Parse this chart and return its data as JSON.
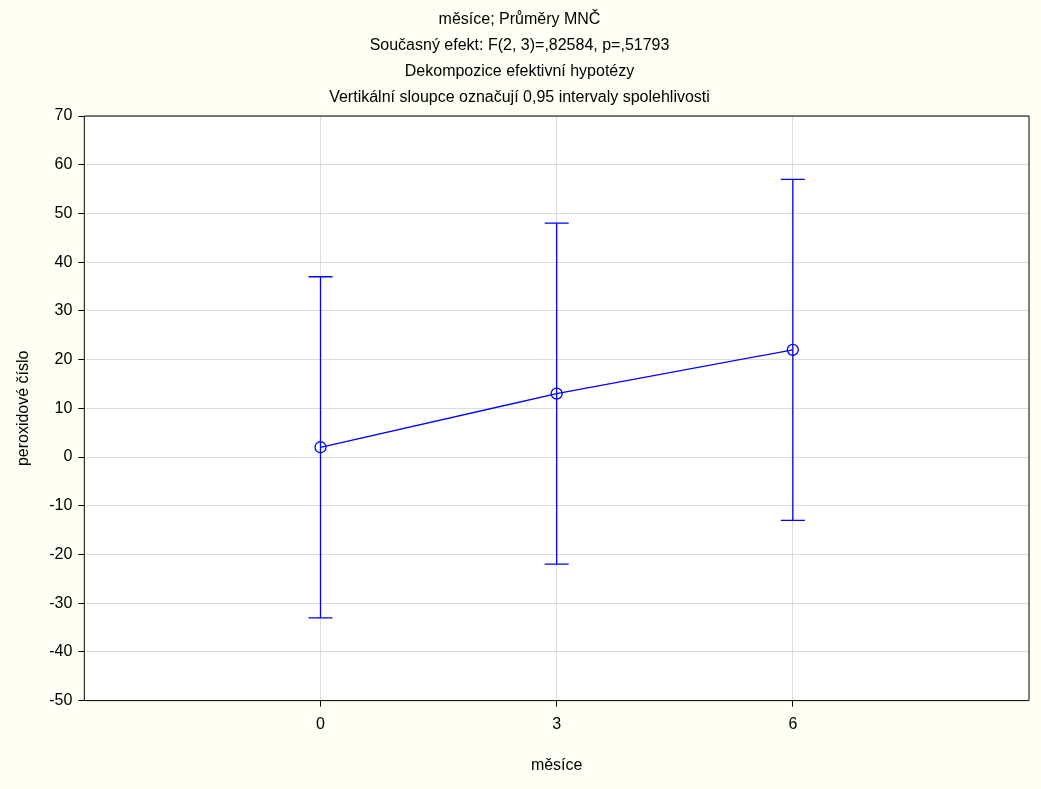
{
  "chart_data": {
    "type": "line",
    "title": "měsíce; Průměry MNČ",
    "subtitle": "Současný efekt: F(2, 3)=,82584, p=,51793\nDekompozice efektivní hypotézy\nVertikální sloupce označují 0,95 intervaly spolehlivosti",
    "xlabel": "měsíce",
    "ylabel": "peroxidové číslo",
    "categories": [
      "0",
      "3",
      "6"
    ],
    "series": [
      {
        "color": "#0000ff",
        "values": [
          2,
          13,
          22
        ],
        "errors": [
          35,
          35,
          35
        ]
      }
    ],
    "ylim": [
      -50,
      70
    ],
    "yticks": [
      -50,
      -40,
      -30,
      -20,
      -10,
      0,
      10,
      20,
      30,
      40,
      50,
      60,
      70
    ],
    "grid": true,
    "legend": false,
    "marker": "circle",
    "line_style": "solid"
  }
}
